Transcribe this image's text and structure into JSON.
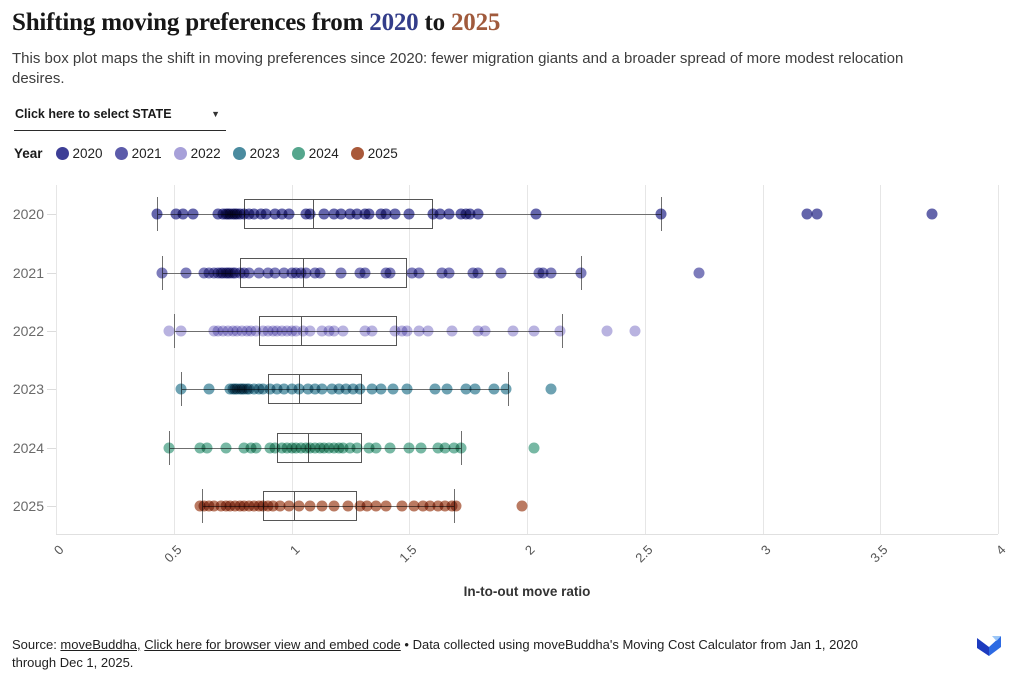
{
  "header": {
    "title_prefix": "Shifting moving preferences from ",
    "title_year_start": "2020",
    "title_mid": " to ",
    "title_year_end": "2025",
    "title_year_start_color": "#333d8a",
    "title_year_end_color": "#a05a3c",
    "subtitle": "This box plot maps the shift in moving preferences since 2020: fewer migration giants and a broader spread of more modest relocation desires."
  },
  "controls": {
    "state_select_label": "Click here to select STATE",
    "dropdown_icon": "▼"
  },
  "legend": {
    "title": "Year",
    "items": [
      {
        "label": "2020",
        "color": "#3d3e96"
      },
      {
        "label": "2021",
        "color": "#5c5baa"
      },
      {
        "label": "2022",
        "color": "#a7a0d9"
      },
      {
        "label": "2023",
        "color": "#4a8b9f"
      },
      {
        "label": "2024",
        "color": "#55a68d"
      },
      {
        "label": "2025",
        "color": "#a9593a"
      }
    ]
  },
  "chart_data": {
    "type": "boxplot",
    "orientation": "horizontal",
    "title": "Shifting moving preferences from 2020 to 2025",
    "xlabel": "In-to-out move ratio",
    "ylabel": "",
    "xlim": [
      0,
      4
    ],
    "xticks": [
      "0",
      "0.5",
      "1",
      "1.5",
      "2",
      "2.5",
      "3",
      "3.5",
      "4"
    ],
    "grid": true,
    "legend_position": "top-left",
    "rows": [
      {
        "label": "2020",
        "color": "#3d3e96",
        "whisker_low": 0.43,
        "q1": 0.8,
        "median": 1.09,
        "q3": 1.6,
        "whisker_high": 2.57,
        "points": [
          0.43,
          0.51,
          0.54,
          0.58,
          0.69,
          0.71,
          0.72,
          0.73,
          0.74,
          0.75,
          0.76,
          0.77,
          0.78,
          0.8,
          0.82,
          0.84,
          0.87,
          0.89,
          0.93,
          0.96,
          0.99,
          1.06,
          1.08,
          1.14,
          1.18,
          1.21,
          1.25,
          1.28,
          1.31,
          1.33,
          1.38,
          1.4,
          1.44,
          1.5,
          1.6,
          1.63,
          1.67,
          1.72,
          1.74,
          1.76,
          1.79,
          2.04,
          2.57,
          3.19,
          3.23,
          3.72
        ]
      },
      {
        "label": "2021",
        "color": "#5c5baa",
        "whisker_low": 0.45,
        "q1": 0.78,
        "median": 1.05,
        "q3": 1.49,
        "whisker_high": 2.23,
        "points": [
          0.45,
          0.55,
          0.63,
          0.65,
          0.67,
          0.69,
          0.7,
          0.71,
          0.72,
          0.73,
          0.74,
          0.75,
          0.76,
          0.78,
          0.8,
          0.82,
          0.86,
          0.9,
          0.93,
          0.97,
          1.0,
          1.02,
          1.04,
          1.06,
          1.1,
          1.12,
          1.21,
          1.29,
          1.31,
          1.4,
          1.42,
          1.51,
          1.54,
          1.64,
          1.67,
          1.77,
          1.79,
          1.89,
          2.05,
          2.07,
          2.1,
          2.23,
          2.73
        ]
      },
      {
        "label": "2022",
        "color": "#a7a0d9",
        "whisker_low": 0.5,
        "q1": 0.86,
        "median": 1.04,
        "q3": 1.45,
        "whisker_high": 2.15,
        "points": [
          0.48,
          0.53,
          0.67,
          0.69,
          0.71,
          0.73,
          0.75,
          0.77,
          0.79,
          0.81,
          0.83,
          0.85,
          0.88,
          0.9,
          0.92,
          0.94,
          0.96,
          0.98,
          1.0,
          1.02,
          1.05,
          1.08,
          1.13,
          1.16,
          1.18,
          1.22,
          1.31,
          1.34,
          1.44,
          1.47,
          1.49,
          1.54,
          1.58,
          1.68,
          1.79,
          1.82,
          1.94,
          2.03,
          2.14,
          2.34,
          2.46
        ]
      },
      {
        "label": "2023",
        "color": "#4a8b9f",
        "whisker_low": 0.53,
        "q1": 0.9,
        "median": 1.03,
        "q3": 1.3,
        "whisker_high": 1.92,
        "points": [
          0.53,
          0.65,
          0.74,
          0.75,
          0.76,
          0.77,
          0.78,
          0.79,
          0.8,
          0.81,
          0.82,
          0.84,
          0.86,
          0.88,
          0.91,
          0.94,
          0.97,
          1.0,
          1.03,
          1.07,
          1.1,
          1.13,
          1.17,
          1.2,
          1.23,
          1.26,
          1.29,
          1.34,
          1.38,
          1.43,
          1.49,
          1.61,
          1.66,
          1.74,
          1.78,
          1.86,
          1.91,
          2.1
        ]
      },
      {
        "label": "2024",
        "color": "#55a68d",
        "whisker_low": 0.48,
        "q1": 0.94,
        "median": 1.07,
        "q3": 1.3,
        "whisker_high": 1.72,
        "points": [
          0.48,
          0.61,
          0.64,
          0.72,
          0.8,
          0.83,
          0.85,
          0.91,
          0.93,
          0.96,
          0.98,
          1.0,
          1.02,
          1.04,
          1.06,
          1.08,
          1.1,
          1.12,
          1.14,
          1.16,
          1.18,
          1.2,
          1.22,
          1.25,
          1.28,
          1.33,
          1.36,
          1.42,
          1.5,
          1.55,
          1.62,
          1.65,
          1.69,
          1.72,
          2.03
        ]
      },
      {
        "label": "2025",
        "color": "#a9593a",
        "whisker_low": 0.62,
        "q1": 0.88,
        "median": 1.01,
        "q3": 1.28,
        "whisker_high": 1.69,
        "points": [
          0.61,
          0.63,
          0.65,
          0.67,
          0.7,
          0.72,
          0.74,
          0.76,
          0.78,
          0.8,
          0.82,
          0.84,
          0.86,
          0.88,
          0.9,
          0.92,
          0.95,
          0.99,
          1.03,
          1.08,
          1.13,
          1.18,
          1.24,
          1.29,
          1.32,
          1.36,
          1.4,
          1.47,
          1.52,
          1.56,
          1.59,
          1.62,
          1.65,
          1.68,
          1.7,
          1.98
        ]
      }
    ]
  },
  "footer": {
    "prefix": "Source: ",
    "source_link": "moveBuddha,",
    "separator": " ",
    "embed_link": "Click here for browser view and embed code",
    "rest": " • Data collected using moveBuddha's Moving Cost Calculator from Jan 1, 2020 through Dec 1, 2025."
  }
}
